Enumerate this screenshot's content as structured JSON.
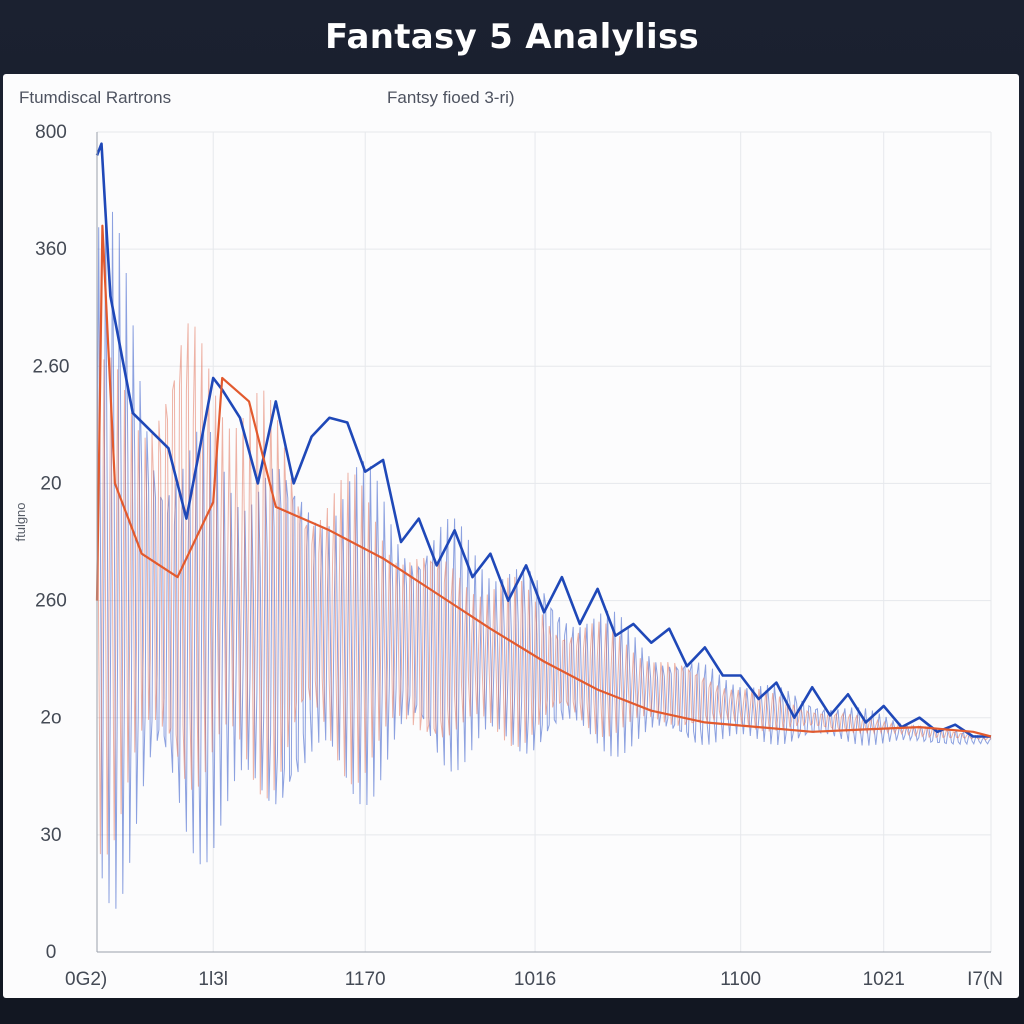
{
  "window": {
    "title": "Fantasy 5 Analyliss"
  },
  "chart_data": {
    "type": "line",
    "title": "Fantasy 5 Analyliss",
    "subtitle_left": "Ftumdiscal Rartrons",
    "subtitle_center": "Fantsy fioed 3-ri)",
    "xlabel": "",
    "ylabel": "ftulgno",
    "y_ticks": [
      "0",
      "30",
      "2o",
      "260",
      "20",
      "2.60",
      "360",
      "800"
    ],
    "y_tick_values": [
      0,
      50,
      100,
      150,
      200,
      250,
      300,
      350
    ],
    "ylim": [
      0,
      350
    ],
    "x_ticks": [
      "0G2)",
      "1l3l",
      "1170",
      "1016",
      "1100",
      "1021",
      "I7(N"
    ],
    "x_tick_values": [
      0,
      13,
      30,
      49,
      72,
      88,
      100
    ],
    "xlim": [
      0,
      100
    ],
    "grid": true,
    "series": [
      {
        "color": "#2f55c8",
        "style": "oscillating",
        "x": [
          0,
          10,
          20,
          30,
          40,
          50,
          60,
          70,
          80,
          90,
          100
        ],
        "y_upper": [
          340,
          230,
          225,
          210,
          190,
          165,
          140,
          122,
          110,
          100,
          92
        ],
        "y_lower": [
          10,
          30,
          45,
          62,
          72,
          80,
          84,
          86,
          88,
          88,
          88
        ]
      },
      {
        "color": "#e2755c",
        "style": "oscillating",
        "x": [
          0,
          10,
          20,
          30,
          40,
          50,
          60,
          70,
          80,
          90,
          100
        ],
        "y_upper": [
          250,
          290,
          240,
          200,
          175,
          155,
          135,
          118,
          105,
          98,
          92
        ],
        "y_lower": [
          40,
          50,
          60,
          72,
          82,
          88,
          92,
          94,
          94,
          92,
          90
        ]
      },
      {
        "color": "#1f48b8",
        "style": "envelope",
        "x": [
          0,
          0.5,
          1.5,
          4,
          8,
          10,
          13,
          14,
          16,
          18,
          20,
          22,
          24,
          26,
          28,
          30,
          32,
          34,
          36,
          38,
          40,
          42,
          44,
          46,
          48,
          50,
          52,
          54,
          56,
          58,
          60,
          62,
          64,
          66,
          68,
          70,
          72,
          74,
          76,
          78,
          80,
          82,
          84,
          86,
          88,
          90,
          92,
          94,
          96,
          98,
          100
        ],
        "y": [
          340,
          345,
          280,
          230,
          215,
          185,
          245,
          240,
          228,
          200,
          235,
          200,
          220,
          228,
          226,
          205,
          210,
          175,
          185,
          165,
          180,
          160,
          170,
          150,
          165,
          145,
          160,
          140,
          155,
          135,
          140,
          132,
          138,
          122,
          130,
          118,
          118,
          108,
          115,
          100,
          113,
          101,
          110,
          98,
          105,
          96,
          100,
          94,
          97,
          92,
          92
        ]
      },
      {
        "color": "#e25a2e",
        "style": "trend",
        "x": [
          0,
          0.6,
          2,
          5,
          9,
          13,
          14,
          17,
          20,
          26,
          32,
          38,
          44,
          50,
          56,
          62,
          68,
          74,
          80,
          86,
          92,
          98,
          100
        ],
        "y": [
          150,
          310,
          200,
          170,
          160,
          192,
          245,
          235,
          190,
          180,
          168,
          153,
          138,
          124,
          112,
          103,
          98,
          96,
          94,
          95,
          96,
          94,
          92
        ]
      }
    ]
  }
}
